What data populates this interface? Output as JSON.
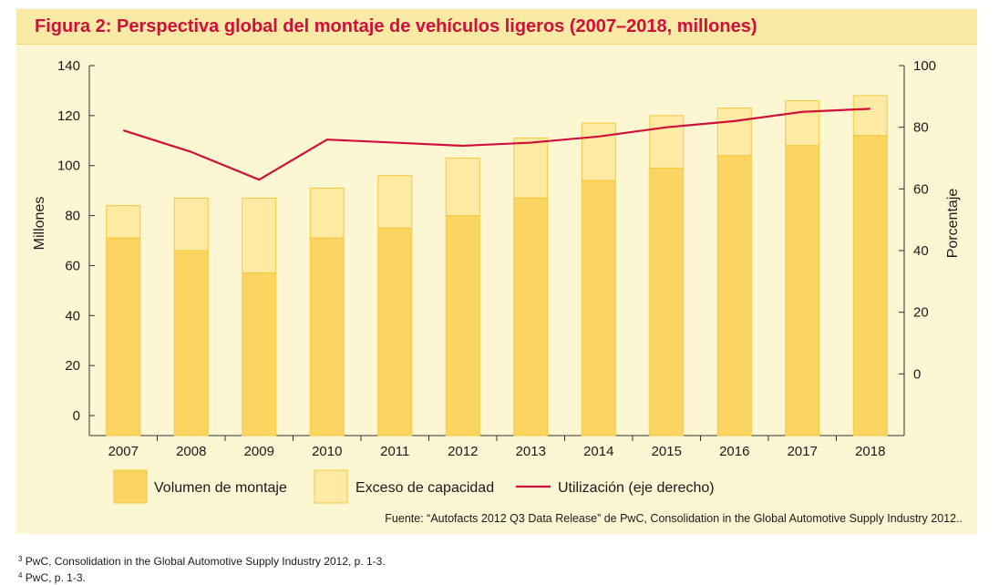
{
  "title": "Figura 2: Perspectiva global del montaje de vehículos ligeros (2007–2018, millones)",
  "source": "Fuente: “Autofacts 2012 Q3 Data Release” de PwC, Consolidation in the Global Automotive Supply Industry 2012..",
  "footnotes": [
    {
      "mark": "3",
      "text": "PwC, Consolidation in the Global Automotive Supply Industry 2012, p. 1-3."
    },
    {
      "mark": "4",
      "text": "PwC, p. 1-3."
    }
  ],
  "chart_data": {
    "type": "bar",
    "stacked": true,
    "categories": [
      "2007",
      "2008",
      "2009",
      "2010",
      "2011",
      "2012",
      "2013",
      "2014",
      "2015",
      "2016",
      "2017",
      "2018"
    ],
    "series": [
      {
        "name": "Volumen de montaje",
        "axis": "left",
        "color": "#fcd462",
        "values": [
          71,
          66,
          57,
          71,
          75,
          80,
          87,
          94,
          99,
          104,
          108,
          112
        ]
      },
      {
        "name": "Exceso de capacidad",
        "axis": "left",
        "color": "#feeaa3",
        "values": [
          13,
          21,
          30,
          20,
          21,
          23,
          24,
          23,
          21,
          19,
          18,
          16
        ]
      },
      {
        "name": "Utilización (eje derecho)",
        "type": "line",
        "axis": "right",
        "color": "#d0103a",
        "values": [
          79,
          72,
          63,
          76,
          75,
          74,
          75,
          77,
          80,
          82,
          85,
          86
        ]
      }
    ],
    "ylabel": "Millones",
    "ylabel_right": "Porcentaje",
    "yticks": [
      0,
      20,
      40,
      60,
      80,
      100,
      120,
      140
    ],
    "yticks_right": [
      0,
      20,
      40,
      60,
      80,
      100
    ],
    "ylim": [
      -8,
      140
    ],
    "ylim_right": [
      -20,
      100
    ],
    "grid": false,
    "legend_position": "bottom"
  }
}
